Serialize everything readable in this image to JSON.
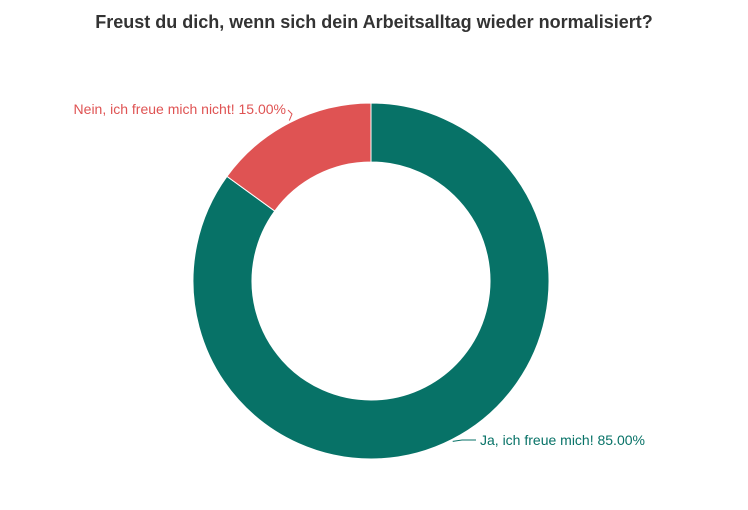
{
  "chart_data": {
    "type": "pie",
    "title": "Freust du dich, wenn sich dein Arbeitsalltag wieder normalisiert?",
    "donut": true,
    "start_angle_deg": 0,
    "slices": [
      {
        "label": "Ja, ich freue mich!",
        "value": 85.0,
        "display": "Ja, ich freue mich! 85.00%",
        "color": "#077267"
      },
      {
        "label": "Nein, ich freue mich nicht!",
        "value": 15.0,
        "display": "Nein, ich freue mich nicht! 15.00%",
        "color": "#df5353"
      }
    ]
  }
}
